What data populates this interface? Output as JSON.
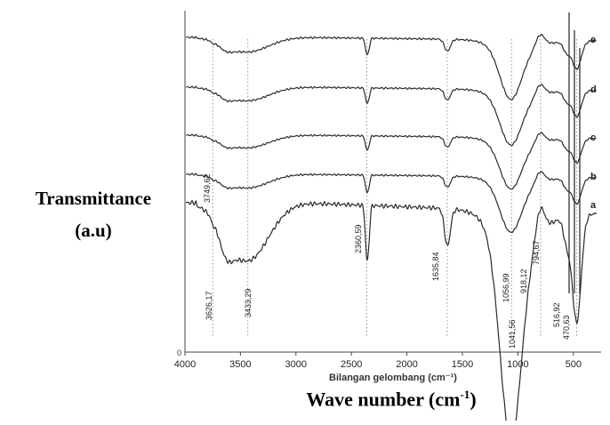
{
  "chart_data": {
    "type": "line",
    "title": "",
    "ylabel": "Transmittance",
    "ylabel_unit": "(a.u)",
    "xlabel_prefix": "Wave number (cm",
    "xlabel_exp": "-1",
    "xlabel_suffix": ")",
    "inner_xlabel": "Bilangan gelombang (cm⁻¹)",
    "y_origin_label": "0",
    "xlim": [
      4000,
      250
    ],
    "x_ticks": [
      4000,
      3500,
      3000,
      2500,
      2000,
      1500,
      1000,
      500
    ],
    "x_tick_labels": [
      "4000",
      "3500",
      "3000",
      "2500",
      "2000",
      "1500",
      "1000",
      "500"
    ],
    "y_ticks": false,
    "grid": false,
    "legend": "curve letters at right end",
    "reference_lines": [
      3749.62,
      3433.29,
      2360.59,
      1635.84,
      1056.99,
      794.67,
      470.63
    ],
    "peak_labels": [
      {
        "x": 3749.62,
        "text": "3749,62"
      },
      {
        "x": 3626.17,
        "text": "3626,17"
      },
      {
        "x": 3433.29,
        "text": "3433,29"
      },
      {
        "x": 2360.59,
        "text": "2360,59"
      },
      {
        "x": 1635.84,
        "text": "1635,84"
      },
      {
        "x": 1056.99,
        "text": "1056,99"
      },
      {
        "x": 1041.56,
        "text": "1041,56"
      },
      {
        "x": 918.12,
        "text": "918,12"
      },
      {
        "x": 794.67,
        "text": "794,67"
      },
      {
        "x": 516.92,
        "text": "516,92"
      },
      {
        "x": 470.63,
        "text": "470,63"
      }
    ],
    "series": [
      {
        "name": "a"
      },
      {
        "name": "b"
      },
      {
        "name": "c"
      },
      {
        "name": "d"
      },
      {
        "name": "e"
      }
    ]
  }
}
